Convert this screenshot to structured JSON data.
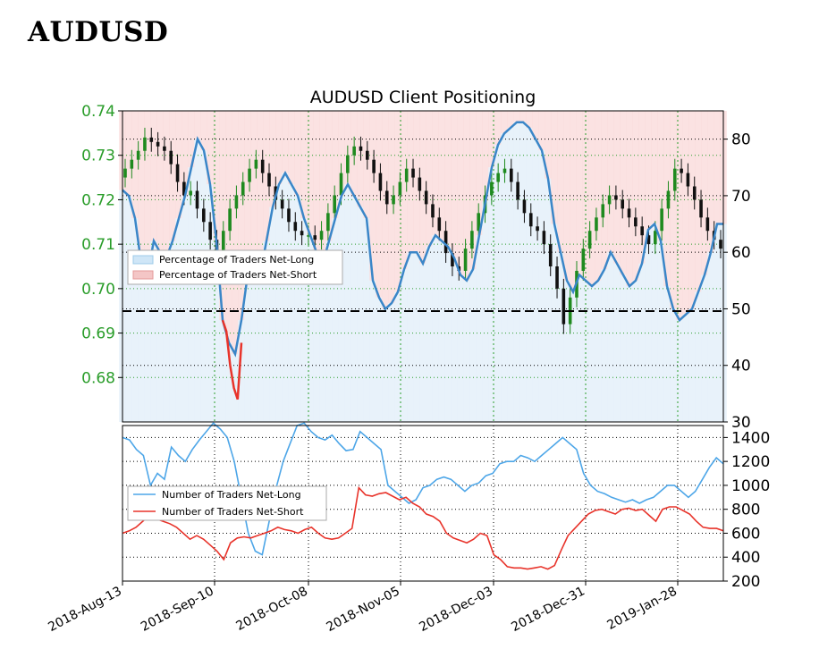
{
  "page": {
    "title": "AUDUSD"
  },
  "chart_data": {
    "type": "line",
    "title": "AUDUSD Client Positioning",
    "dates": [
      "2018-Aug-13",
      "2018-Sep-10",
      "2018-Oct-08",
      "2018-Nov-05",
      "2018-Dec-03",
      "2018-Dec-31",
      "2019-Jan-28"
    ],
    "top_panel": {
      "price_axis": {
        "ticks": [
          "0.74",
          "0.73",
          "0.72",
          "0.71",
          "0.70",
          "0.69",
          "0.68"
        ],
        "range": [
          0.67,
          0.74
        ]
      },
      "percent_axis": {
        "ticks": [
          "80",
          "70",
          "60",
          "50",
          "40",
          "30"
        ],
        "range": [
          30,
          85
        ]
      },
      "reference_line": 50,
      "legend": {
        "placement": "center-left",
        "items": [
          "Percentage of Traders Net-Long",
          "Percentage of Traders Net-Short"
        ]
      },
      "candles_close": [
        0.727,
        0.729,
        0.731,
        0.734,
        0.733,
        0.732,
        0.731,
        0.728,
        0.724,
        0.721,
        0.722,
        0.718,
        0.715,
        0.711,
        0.708,
        0.713,
        0.718,
        0.721,
        0.724,
        0.727,
        0.729,
        0.726,
        0.723,
        0.72,
        0.718,
        0.715,
        0.713,
        0.712,
        0.712,
        0.711,
        0.713,
        0.717,
        0.721,
        0.726,
        0.73,
        0.732,
        0.731,
        0.729,
        0.726,
        0.722,
        0.719,
        0.721,
        0.724,
        0.727,
        0.725,
        0.722,
        0.719,
        0.716,
        0.713,
        0.708,
        0.705,
        0.704,
        0.709,
        0.713,
        0.717,
        0.721,
        0.724,
        0.726,
        0.727,
        0.724,
        0.72,
        0.717,
        0.714,
        0.713,
        0.71,
        0.705,
        0.7,
        0.692,
        0.698,
        0.704,
        0.709,
        0.713,
        0.716,
        0.719,
        0.721,
        0.72,
        0.718,
        0.716,
        0.714,
        0.712,
        0.71,
        0.713,
        0.718,
        0.722,
        0.727,
        0.726,
        0.723,
        0.72,
        0.716,
        0.713,
        0.711,
        0.709
      ],
      "net_long_pct": [
        71,
        70,
        66,
        58,
        56,
        62,
        60,
        59,
        62,
        66,
        70,
        75,
        80,
        78,
        72,
        62,
        48,
        44,
        42,
        48,
        56,
        58,
        56,
        62,
        68,
        72,
        74,
        72,
        70,
        66,
        63,
        60,
        58,
        62,
        66,
        70,
        72,
        70,
        68,
        66,
        55,
        52,
        50,
        51,
        53,
        57,
        60,
        60,
        58,
        61,
        63,
        62,
        61,
        59,
        56,
        55,
        57,
        63,
        69,
        75,
        79,
        81,
        82,
        83,
        83,
        82,
        80,
        78,
        73,
        65,
        60,
        55,
        53,
        56,
        55,
        54,
        55,
        57,
        60,
        58,
        56,
        54,
        55,
        58,
        64,
        65,
        62,
        54,
        50,
        48,
        49,
        50,
        53,
        56,
        60,
        65,
        65
      ],
      "net_short_pct": [
        48,
        46,
        40,
        36,
        34,
        44
      ]
    },
    "bottom_panel": {
      "y_axis": {
        "ticks": [
          "1400",
          "1200",
          "1000",
          "800",
          "600",
          "400",
          "200"
        ],
        "range": [
          200,
          1500
        ]
      },
      "legend": {
        "placement": "center-left"
      },
      "series": [
        {
          "name": "Number of Traders Net-Long",
          "color": "#4da6e8",
          "values": [
            1400,
            1380,
            1300,
            1250,
            1000,
            1100,
            1050,
            1320,
            1250,
            1200,
            1300,
            1380,
            1450,
            1520,
            1470,
            1400,
            1200,
            900,
            600,
            450,
            420,
            700,
            980,
            1200,
            1350,
            1500,
            1520,
            1450,
            1400,
            1380,
            1420,
            1350,
            1290,
            1300,
            1450,
            1400,
            1350,
            1300,
            1000,
            950,
            900,
            850,
            880,
            980,
            1000,
            1050,
            1070,
            1050,
            1000,
            950,
            1000,
            1020,
            1080,
            1100,
            1180,
            1200,
            1200,
            1250,
            1230,
            1200,
            1250,
            1300,
            1350,
            1400,
            1350,
            1300,
            1100,
            1000,
            950,
            930,
            900,
            880,
            860,
            880,
            850,
            880,
            900,
            950,
            1000,
            1000,
            950,
            900,
            950,
            1050,
            1150,
            1230,
            1180
          ]
        },
        {
          "name": "Number of Traders Net-Short",
          "color": "#e8332a",
          "values": [
            600,
            620,
            650,
            700,
            750,
            720,
            700,
            680,
            650,
            600,
            550,
            580,
            550,
            500,
            450,
            380,
            520,
            560,
            570,
            560,
            580,
            600,
            620,
            650,
            630,
            620,
            600,
            630,
            650,
            600,
            560,
            550,
            560,
            600,
            640,
            980,
            920,
            910,
            930,
            940,
            910,
            880,
            900,
            850,
            820,
            760,
            740,
            700,
            600,
            560,
            540,
            520,
            550,
            600,
            580,
            420,
            380,
            320,
            310,
            310,
            300,
            310,
            320,
            300,
            330,
            460,
            580,
            640,
            700,
            760,
            790,
            800,
            780,
            760,
            800,
            810,
            790,
            800,
            750,
            700,
            800,
            820,
            820,
            790,
            760,
            700,
            650,
            640,
            640,
            620
          ]
        }
      ]
    }
  }
}
